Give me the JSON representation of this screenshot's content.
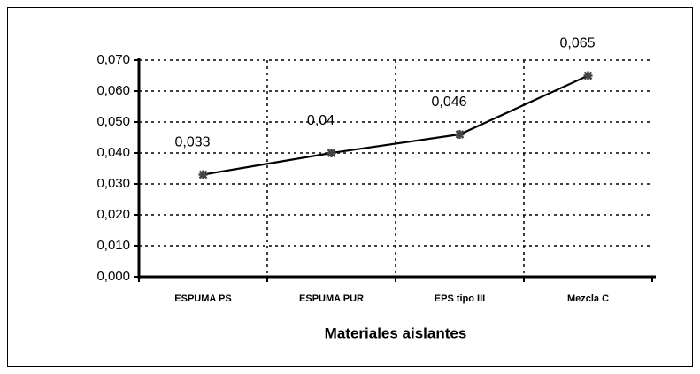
{
  "chart_data": {
    "type": "line",
    "x_label": "Materiales aislantes",
    "categories": [
      "ESPUMA PS",
      "ESPUMA PUR",
      "EPS tipo III",
      "Mezcla C"
    ],
    "series": [
      {
        "name": null,
        "color": "#000000",
        "values": [
          0.033,
          0.04,
          0.046,
          0.065
        ],
        "value_labels": [
          "0,033",
          "0,04",
          "0,046",
          "0,065"
        ]
      }
    ],
    "ylim": [
      0,
      0.07
    ],
    "yticks": [
      {
        "value": 0,
        "label": "0,000"
      },
      {
        "value": 0.01,
        "label": "0,010"
      },
      {
        "value": 0.02,
        "label": "0,020"
      },
      {
        "value": 0.03,
        "label": "0,030"
      },
      {
        "value": 0.04,
        "label": "0,040"
      },
      {
        "value": 0.05,
        "label": "0,050"
      },
      {
        "value": 0.06,
        "label": "0,060"
      },
      {
        "value": 0.07,
        "label": "0,070"
      }
    ],
    "grid": true
  }
}
